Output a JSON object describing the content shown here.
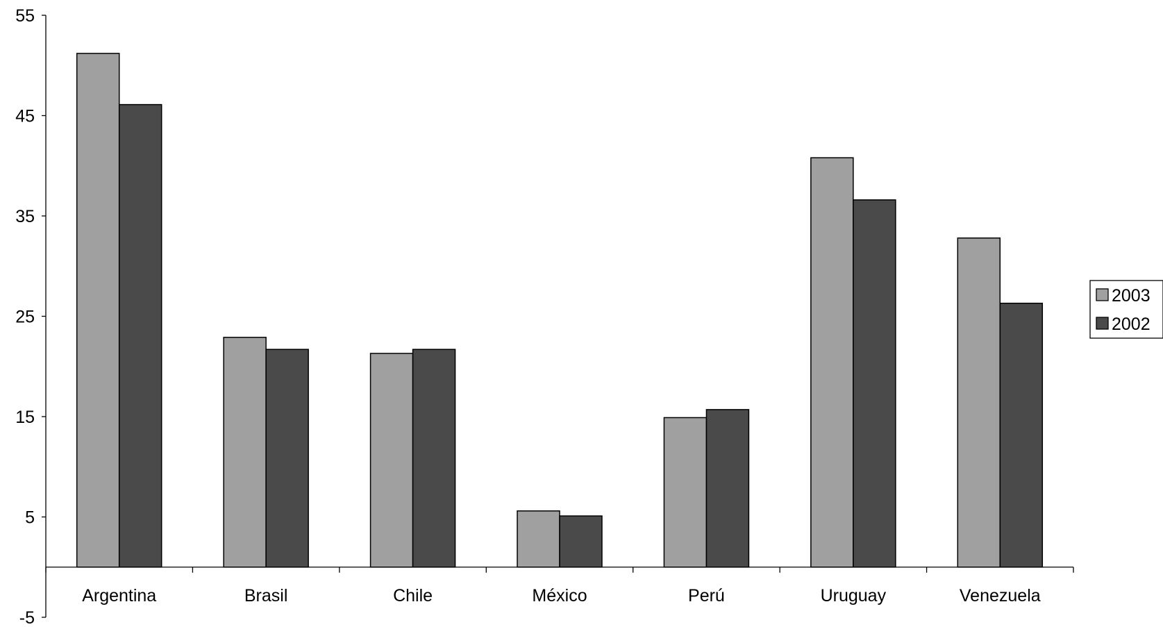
{
  "chart_data": {
    "type": "bar",
    "title": "",
    "xlabel": "",
    "ylabel": "",
    "categories": [
      "Argentina",
      "Brasil",
      "Chile",
      "México",
      "Perú",
      "Uruguay",
      "Venezuela"
    ],
    "series": [
      {
        "name": "2003",
        "color": "#a0a0a0",
        "values": [
          51.2,
          22.9,
          21.3,
          5.6,
          14.9,
          40.8,
          32.8
        ]
      },
      {
        "name": "2002",
        "color": "#4a4a4a",
        "values": [
          46.1,
          21.7,
          21.7,
          5.1,
          15.7,
          36.6,
          26.3
        ]
      }
    ],
    "ylim": [
      -5,
      55
    ],
    "yticks": [
      55,
      45,
      35,
      25,
      15,
      5,
      -5
    ],
    "grid": false,
    "legend": "right"
  }
}
